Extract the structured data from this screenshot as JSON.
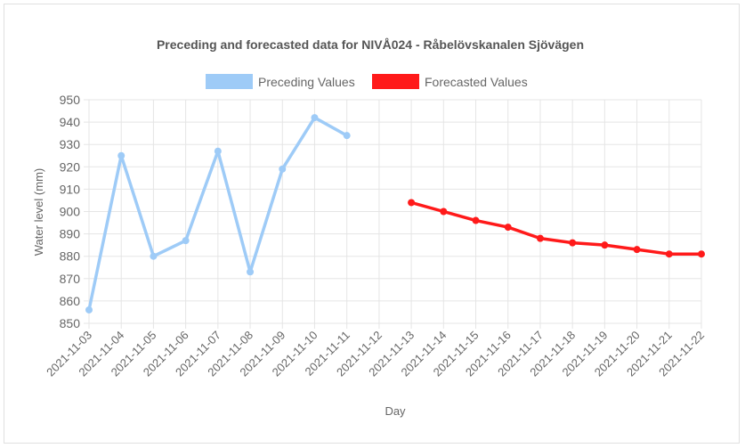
{
  "chart_data": {
    "type": "line",
    "title": "Preceding and forecasted data for NIVÅ024 - Råbelövskanalen Sjövägen",
    "xlabel": "Day",
    "ylabel": "Water level (mm)",
    "ylim": [
      850,
      950
    ],
    "yticks": [
      850,
      860,
      870,
      880,
      890,
      900,
      910,
      920,
      930,
      940,
      950
    ],
    "categories": [
      "2021-11-03",
      "2021-11-04",
      "2021-11-05",
      "2021-11-06",
      "2021-11-07",
      "2021-11-08",
      "2021-11-09",
      "2021-11-10",
      "2021-11-11",
      "2021-11-12",
      "2021-11-13",
      "2021-11-14",
      "2021-11-15",
      "2021-11-16",
      "2021-11-17",
      "2021-11-18",
      "2021-11-19",
      "2021-11-20",
      "2021-11-21",
      "2021-11-22"
    ],
    "legend_position": "top",
    "grid": true,
    "series": [
      {
        "name": "Preceding Values",
        "color": "#9ecbf7",
        "values": [
          856,
          925,
          880,
          887,
          927,
          873,
          919,
          942,
          934,
          null,
          null,
          null,
          null,
          null,
          null,
          null,
          null,
          null,
          null,
          null
        ]
      },
      {
        "name": "Forecasted Values",
        "color": "#ff1a1a",
        "values": [
          null,
          null,
          null,
          null,
          null,
          null,
          null,
          null,
          null,
          null,
          904,
          900,
          896,
          893,
          888,
          886,
          885,
          883,
          881,
          881
        ]
      }
    ]
  }
}
